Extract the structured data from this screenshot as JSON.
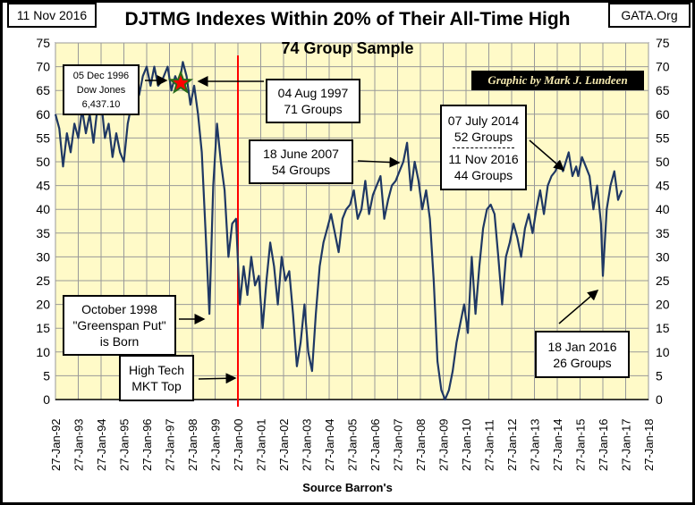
{
  "header": {
    "date": "11 Nov 2016",
    "site": "GATA.Org",
    "credit": "Graphic by Mark J. Lundeen"
  },
  "chart_data": {
    "type": "line",
    "title": "DJTMG Indexes Within 20% of Their All-Time High",
    "subtitle": "74 Group Sample",
    "xlabel": "Source Barron's",
    "ylabel": "",
    "ylim": [
      0,
      75
    ],
    "yticks": [
      0,
      5,
      10,
      15,
      20,
      25,
      30,
      35,
      40,
      45,
      50,
      55,
      60,
      65,
      70,
      75
    ],
    "xticks": [
      "27-Jan-92",
      "27-Jan-93",
      "27-Jan-94",
      "27-Jan-95",
      "27-Jan-96",
      "27-Jan-97",
      "27-Jan-98",
      "27-Jan-99",
      "27-Jan-00",
      "27-Jan-01",
      "27-Jan-02",
      "27-Jan-03",
      "27-Jan-04",
      "27-Jan-05",
      "27-Jan-06",
      "27-Jan-07",
      "27-Jan-08",
      "27-Jan-09",
      "27-Jan-10",
      "27-Jan-11",
      "27-Jan-12",
      "27-Jan-13",
      "27-Jan-14",
      "27-Jan-15",
      "27-Jan-16",
      "27-Jan-17",
      "27-Jan-18"
    ],
    "grid": true,
    "line_color": "#1f3864",
    "background": "#fffac8",
    "marker_line": {
      "date": "2000-01",
      "color": "#ff0000"
    },
    "series": [
      {
        "points": [
          [
            "1992-01",
            60
          ],
          [
            "1992-03",
            57
          ],
          [
            "1992-05",
            49
          ],
          [
            "1992-07",
            56
          ],
          [
            "1992-09",
            52
          ],
          [
            "1992-11",
            58
          ],
          [
            "1993-01",
            55
          ],
          [
            "1993-03",
            61
          ],
          [
            "1993-05",
            56
          ],
          [
            "1993-07",
            60
          ],
          [
            "1993-09",
            54
          ],
          [
            "1993-11",
            61
          ],
          [
            "1994-01",
            63
          ],
          [
            "1994-03",
            55
          ],
          [
            "1994-05",
            58
          ],
          [
            "1994-07",
            51
          ],
          [
            "1994-09",
            56
          ],
          [
            "1994-11",
            52
          ],
          [
            "1995-01",
            50
          ],
          [
            "1995-03",
            58
          ],
          [
            "1995-05",
            62
          ],
          [
            "1995-07",
            66
          ],
          [
            "1995-09",
            64
          ],
          [
            "1995-11",
            68
          ],
          [
            "1996-01",
            70
          ],
          [
            "1996-03",
            66
          ],
          [
            "1996-05",
            70
          ],
          [
            "1996-07",
            66
          ],
          [
            "1996-09",
            67
          ],
          [
            "1996-12",
            70
          ],
          [
            "1997-02",
            65
          ],
          [
            "1997-04",
            68
          ],
          [
            "1997-06",
            66
          ],
          [
            "1997-08",
            71
          ],
          [
            "1997-10",
            68
          ],
          [
            "1997-12",
            62
          ],
          [
            "1998-02",
            66
          ],
          [
            "1998-04",
            60
          ],
          [
            "1998-06",
            52
          ],
          [
            "1998-08",
            35
          ],
          [
            "1998-10",
            18
          ],
          [
            "1998-12",
            45
          ],
          [
            "1999-02",
            58
          ],
          [
            "1999-04",
            50
          ],
          [
            "1999-06",
            44
          ],
          [
            "1999-08",
            30
          ],
          [
            "1999-10",
            37
          ],
          [
            "1999-12",
            38
          ],
          [
            "2000-02",
            20
          ],
          [
            "2000-04",
            28
          ],
          [
            "2000-06",
            22
          ],
          [
            "2000-08",
            30
          ],
          [
            "2000-10",
            24
          ],
          [
            "2000-12",
            26
          ],
          [
            "2001-02",
            15
          ],
          [
            "2001-04",
            25
          ],
          [
            "2001-06",
            33
          ],
          [
            "2001-08",
            28
          ],
          [
            "2001-10",
            20
          ],
          [
            "2001-12",
            30
          ],
          [
            "2002-02",
            25
          ],
          [
            "2002-04",
            27
          ],
          [
            "2002-06",
            18
          ],
          [
            "2002-08",
            7
          ],
          [
            "2002-10",
            12
          ],
          [
            "2002-12",
            20
          ],
          [
            "2003-02",
            10
          ],
          [
            "2003-04",
            6
          ],
          [
            "2003-06",
            18
          ],
          [
            "2003-08",
            28
          ],
          [
            "2003-10",
            33
          ],
          [
            "2003-12",
            36
          ],
          [
            "2004-02",
            39
          ],
          [
            "2004-04",
            35
          ],
          [
            "2004-06",
            31
          ],
          [
            "2004-08",
            38
          ],
          [
            "2004-10",
            40
          ],
          [
            "2004-12",
            41
          ],
          [
            "2005-02",
            44
          ],
          [
            "2005-04",
            38
          ],
          [
            "2005-06",
            40
          ],
          [
            "2005-08",
            46
          ],
          [
            "2005-10",
            39
          ],
          [
            "2005-12",
            43
          ],
          [
            "2006-02",
            45
          ],
          [
            "2006-04",
            47
          ],
          [
            "2006-06",
            38
          ],
          [
            "2006-08",
            42
          ],
          [
            "2006-10",
            45
          ],
          [
            "2006-12",
            46
          ],
          [
            "2007-02",
            48
          ],
          [
            "2007-04",
            50
          ],
          [
            "2007-06",
            54
          ],
          [
            "2007-08",
            44
          ],
          [
            "2007-10",
            50
          ],
          [
            "2007-12",
            46
          ],
          [
            "2008-02",
            40
          ],
          [
            "2008-04",
            44
          ],
          [
            "2008-06",
            38
          ],
          [
            "2008-08",
            25
          ],
          [
            "2008-10",
            8
          ],
          [
            "2008-12",
            2
          ],
          [
            "2009-02",
            0
          ],
          [
            "2009-04",
            2
          ],
          [
            "2009-06",
            6
          ],
          [
            "2009-08",
            12
          ],
          [
            "2009-10",
            16
          ],
          [
            "2009-12",
            20
          ],
          [
            "2010-02",
            14
          ],
          [
            "2010-04",
            30
          ],
          [
            "2010-06",
            18
          ],
          [
            "2010-08",
            28
          ],
          [
            "2010-10",
            36
          ],
          [
            "2010-12",
            40
          ],
          [
            "2011-02",
            41
          ],
          [
            "2011-04",
            39
          ],
          [
            "2011-06",
            30
          ],
          [
            "2011-08",
            20
          ],
          [
            "2011-10",
            30
          ],
          [
            "2011-12",
            33
          ],
          [
            "2012-02",
            37
          ],
          [
            "2012-04",
            34
          ],
          [
            "2012-06",
            30
          ],
          [
            "2012-08",
            36
          ],
          [
            "2012-10",
            39
          ],
          [
            "2012-12",
            35
          ],
          [
            "2013-02",
            40
          ],
          [
            "2013-04",
            44
          ],
          [
            "2013-06",
            39
          ],
          [
            "2013-08",
            45
          ],
          [
            "2013-10",
            47
          ],
          [
            "2013-12",
            48
          ],
          [
            "2014-02",
            50
          ],
          [
            "2014-04",
            48
          ],
          [
            "2014-07",
            52
          ],
          [
            "2014-09",
            47
          ],
          [
            "2014-11",
            49
          ],
          [
            "2014-12",
            47
          ],
          [
            "2015-02",
            51
          ],
          [
            "2015-04",
            49
          ],
          [
            "2015-06",
            47
          ],
          [
            "2015-08",
            40
          ],
          [
            "2015-10",
            45
          ],
          [
            "2015-12",
            37
          ],
          [
            "2016-01",
            26
          ],
          [
            "2016-03",
            40
          ],
          [
            "2016-05",
            45
          ],
          [
            "2016-07",
            48
          ],
          [
            "2016-09",
            42
          ],
          [
            "2016-11",
            44
          ]
        ]
      }
    ],
    "annotations": [
      {
        "lines": [
          "05  Dec 1996",
          "Dow Jones",
          "6,437.10"
        ]
      },
      {
        "lines": [
          "04 Aug 1997",
          "71 Groups"
        ]
      },
      {
        "lines": [
          "18 June 2007",
          "54 Groups"
        ]
      },
      {
        "lines": [
          "07 July 2014",
          "52 Groups",
          "11 Nov 2016",
          "44 Groups"
        ]
      },
      {
        "lines": [
          "October 1998",
          "\"Greenspan Put\"",
          "is Born"
        ]
      },
      {
        "lines": [
          "High Tech",
          "MKT Top"
        ]
      },
      {
        "lines": [
          "18 Jan 2016",
          "26 Groups"
        ]
      }
    ]
  }
}
